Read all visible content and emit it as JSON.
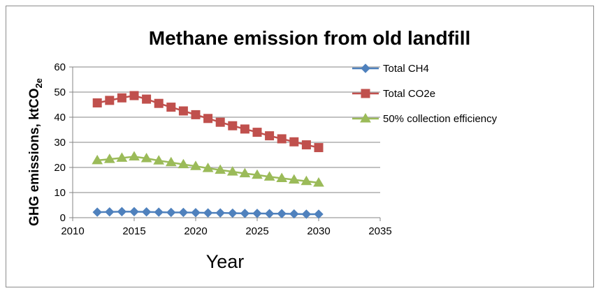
{
  "chart_data": {
    "type": "line",
    "title": "Methane emission from old landfill",
    "xlabel": "Year",
    "ylabel": "GHG emissions, ktCO",
    "ylabel_subscript": "2e",
    "xlim": [
      2010,
      2035
    ],
    "ylim": [
      0,
      60
    ],
    "xticks": [
      2010,
      2015,
      2020,
      2025,
      2030,
      2035
    ],
    "yticks": [
      0,
      10,
      20,
      30,
      40,
      50,
      60
    ],
    "grid": "horizontal",
    "legend_position": "right",
    "x": [
      2012,
      2013,
      2014,
      2015,
      2016,
      2017,
      2018,
      2019,
      2020,
      2021,
      2022,
      2023,
      2024,
      2025,
      2026,
      2027,
      2028,
      2029,
      2030
    ],
    "series": [
      {
        "name": "Total CH4",
        "marker": "diamond",
        "color": "#4f81bd",
        "values": [
          2.2,
          2.3,
          2.4,
          2.4,
          2.3,
          2.2,
          2.1,
          2.1,
          2.0,
          1.9,
          1.9,
          1.8,
          1.7,
          1.7,
          1.6,
          1.6,
          1.5,
          1.4,
          1.4
        ]
      },
      {
        "name": "Total CO2e",
        "marker": "square",
        "color": "#c0504d",
        "values": [
          45.7,
          46.7,
          47.7,
          48.6,
          47.2,
          45.5,
          44.0,
          42.5,
          41.0,
          39.5,
          38.0,
          36.6,
          35.3,
          34.0,
          32.6,
          31.4,
          30.2,
          29.0,
          27.9
        ]
      },
      {
        "name": "50% collection efficiency",
        "marker": "triangle",
        "color": "#9bbb59",
        "values": [
          22.8,
          23.3,
          23.8,
          24.3,
          23.6,
          22.7,
          22.0,
          21.2,
          20.5,
          19.7,
          19.0,
          18.3,
          17.6,
          17.0,
          16.3,
          15.7,
          15.1,
          14.5,
          13.9
        ]
      }
    ]
  }
}
